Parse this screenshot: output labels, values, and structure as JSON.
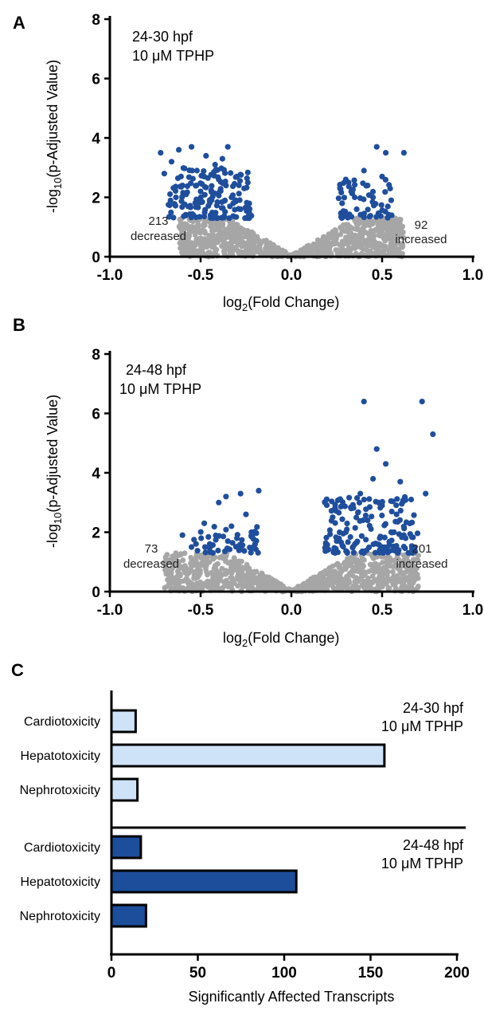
{
  "colors": {
    "significant": "#1f4e9c",
    "non_significant": "#a6a6a6",
    "bar_24_30": "#cfe3f8",
    "bar_24_48": "#1c4e9b"
  },
  "panels": {
    "a": {
      "letter": "A",
      "annotation_line1": "24-30 hpf",
      "annotation_line2": "10 μM TPHP",
      "left_count": "213",
      "left_word": "decreased",
      "right_count": "92",
      "right_word": "increased"
    },
    "b": {
      "letter": "B",
      "annotation_line1": "24-48 hpf",
      "annotation_line2": "10 μM TPHP",
      "left_count": "73",
      "left_word": "decreased",
      "right_count": "201",
      "right_word": "increased"
    },
    "c": {
      "letter": "C",
      "group1_line1": "24-30 hpf",
      "group1_line2": "10 μM TPHP",
      "group2_line1": "24-48 hpf",
      "group2_line2": "10 μM TPHP"
    }
  },
  "chart_data": [
    {
      "type": "scatter",
      "panel": "A",
      "xlabel": "log2(Fold Change)",
      "ylabel": "-log10(p-Adjusted Value)",
      "xlim": [
        -1.0,
        1.0
      ],
      "ylim": [
        0,
        8
      ],
      "xticks": [
        "-1.0",
        "-0.5",
        "0.0",
        "0.5",
        "1.0"
      ],
      "yticks": [
        "0",
        "2",
        "4",
        "6",
        "8"
      ],
      "significance_threshold": 1.3,
      "decreased_count": 213,
      "increased_count": 92,
      "significant_points": [
        [
          -0.72,
          3.5
        ],
        [
          -0.7,
          2.8
        ],
        [
          -0.66,
          3.2
        ],
        [
          -0.62,
          3.6
        ],
        [
          -0.6,
          2.4
        ],
        [
          -0.55,
          3.7
        ],
        [
          -0.52,
          2.9
        ],
        [
          -0.5,
          2.2
        ],
        [
          -0.47,
          3.4
        ],
        [
          -0.45,
          1.9
        ],
        [
          -0.42,
          3.1
        ],
        [
          -0.4,
          2.6
        ],
        [
          -0.38,
          3.3
        ],
        [
          -0.35,
          3.7
        ],
        [
          -0.33,
          2.0
        ],
        [
          -0.3,
          2.7
        ],
        [
          -0.28,
          1.6
        ],
        [
          -0.26,
          2.3
        ],
        [
          -0.58,
          2.1
        ],
        [
          -0.48,
          2.7
        ],
        [
          -0.36,
          2.4
        ],
        [
          -0.44,
          2.2
        ],
        [
          -0.32,
          1.8
        ],
        [
          -0.24,
          1.7
        ],
        [
          0.28,
          1.8
        ],
        [
          0.3,
          2.6
        ],
        [
          0.33,
          2.2
        ],
        [
          0.36,
          1.6
        ],
        [
          0.4,
          2.9
        ],
        [
          0.42,
          2.4
        ],
        [
          0.45,
          2.0
        ],
        [
          0.47,
          3.7
        ],
        [
          0.5,
          2.7
        ],
        [
          0.52,
          3.5
        ],
        [
          0.55,
          1.9
        ],
        [
          0.62,
          3.5
        ]
      ],
      "background_cloud": "arms rising from (0,0) toward the ~1.3 significance threshold"
    },
    {
      "type": "scatter",
      "panel": "B",
      "xlabel": "log2(Fold Change)",
      "ylabel": "-log10(p-Adjusted Value)",
      "xlim": [
        -1.0,
        1.0
      ],
      "ylim": [
        0,
        8
      ],
      "xticks": [
        "-1.0",
        "-0.5",
        "0.0",
        "0.5",
        "1.0"
      ],
      "yticks": [
        "0",
        "2",
        "4",
        "6",
        "8"
      ],
      "significance_threshold": 1.3,
      "decreased_count": 73,
      "increased_count": 201,
      "significant_points": [
        [
          -0.6,
          1.9
        ],
        [
          -0.55,
          1.5
        ],
        [
          -0.48,
          2.3
        ],
        [
          -0.45,
          1.6
        ],
        [
          -0.4,
          3.0
        ],
        [
          -0.36,
          3.2
        ],
        [
          -0.33,
          2.2
        ],
        [
          -0.3,
          1.8
        ],
        [
          -0.28,
          3.3
        ],
        [
          -0.25,
          2.6
        ],
        [
          -0.22,
          2.0
        ],
        [
          -0.18,
          3.4
        ],
        [
          -0.2,
          1.6
        ],
        [
          -0.35,
          1.7
        ],
        [
          0.2,
          1.4
        ],
        [
          0.25,
          1.7
        ],
        [
          0.3,
          2.0
        ],
        [
          0.33,
          2.8
        ],
        [
          0.35,
          1.6
        ],
        [
          0.38,
          3.3
        ],
        [
          0.4,
          6.4
        ],
        [
          0.42,
          2.4
        ],
        [
          0.45,
          3.8
        ],
        [
          0.47,
          4.8
        ],
        [
          0.5,
          2.9
        ],
        [
          0.52,
          4.3
        ],
        [
          0.55,
          2.0
        ],
        [
          0.58,
          2.6
        ],
        [
          0.6,
          3.7
        ],
        [
          0.63,
          1.8
        ],
        [
          0.66,
          3.1
        ],
        [
          0.72,
          6.4
        ],
        [
          0.74,
          3.3
        ],
        [
          0.78,
          5.3
        ]
      ],
      "background_cloud": "arms rising from (0,0) toward the ~1.3 significance threshold"
    },
    {
      "type": "bar",
      "panel": "C",
      "orientation": "horizontal",
      "xlabel": "Significantly Affected Transcripts",
      "xlim": [
        0,
        200
      ],
      "xticks": [
        "0",
        "50",
        "100",
        "150",
        "200"
      ],
      "groups": [
        {
          "name": "24-30 hpf 10 μM TPHP",
          "categories": [
            "Cardiotoxicity",
            "Hepatotoxicity",
            "Nephrotoxicity"
          ],
          "values": [
            14,
            158,
            15
          ]
        },
        {
          "name": "24-48 hpf 10 μM TPHP",
          "categories": [
            "Cardiotoxicity",
            "Hepatotoxicity",
            "Nephrotoxicity"
          ],
          "values": [
            17,
            107,
            20
          ]
        }
      ]
    }
  ]
}
